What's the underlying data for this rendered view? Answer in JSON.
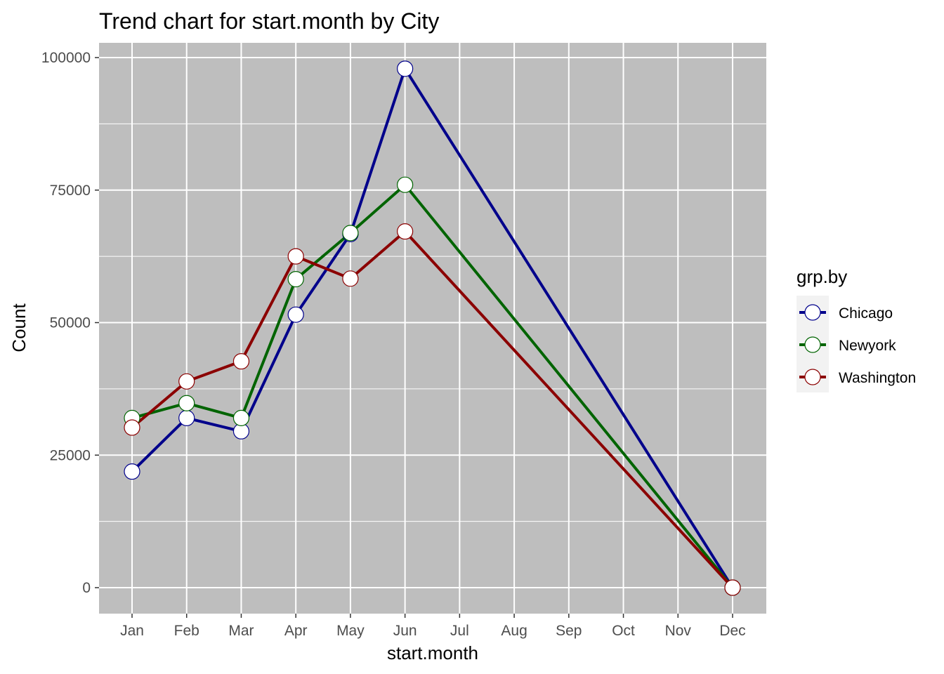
{
  "chart_data": {
    "type": "line",
    "title": "Trend chart for start.month by City",
    "xlabel": "start.month",
    "ylabel": "Count",
    "categories": [
      "Jan",
      "Feb",
      "Mar",
      "Apr",
      "May",
      "Jun",
      "Jul",
      "Aug",
      "Sep",
      "Oct",
      "Nov",
      "Dec"
    ],
    "ylim": [
      -5000,
      102000
    ],
    "yticks": [
      0,
      25000,
      50000,
      75000,
      100000
    ],
    "ytick_labels": [
      "0",
      "25000",
      "50000",
      "75000",
      "100000"
    ],
    "grid": true,
    "panel_background": "#bebebe",
    "legend": {
      "title": "grp.by",
      "position": "right"
    },
    "series": [
      {
        "name": "Chicago",
        "color": "#00008b",
        "points": [
          [
            "Jan",
            21900
          ],
          [
            "Feb",
            32000
          ],
          [
            "Mar",
            29500
          ],
          [
            "Apr",
            51500
          ],
          [
            "May",
            66700
          ],
          [
            "Jun",
            97900
          ],
          [
            "Dec",
            0
          ]
        ]
      },
      {
        "name": "Newyork",
        "color": "#006400",
        "points": [
          [
            "Jan",
            32000
          ],
          [
            "Feb",
            34800
          ],
          [
            "Mar",
            32000
          ],
          [
            "Apr",
            58200
          ],
          [
            "May",
            66900
          ],
          [
            "Jun",
            76000
          ],
          [
            "Dec",
            0
          ]
        ]
      },
      {
        "name": "Washington",
        "color": "#8b0000",
        "points": [
          [
            "Jan",
            30200
          ],
          [
            "Feb",
            38900
          ],
          [
            "Mar",
            42700
          ],
          [
            "Apr",
            62500
          ],
          [
            "May",
            58300
          ],
          [
            "Jun",
            67200
          ],
          [
            "Dec",
            0
          ]
        ]
      }
    ]
  }
}
